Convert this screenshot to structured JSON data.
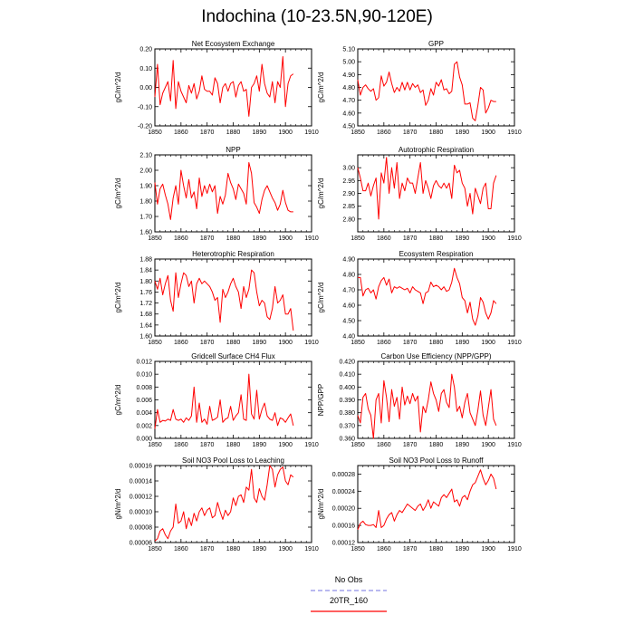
{
  "title": "Indochina (10-23.5N,90-120E)",
  "legend": {
    "entries": [
      {
        "label": "No Obs",
        "color": "#8f8fe6",
        "dash": true
      },
      {
        "label": "20TR_160",
        "color": "#ff0000",
        "dash": false
      }
    ]
  },
  "colors": {
    "series": "#ff0000",
    "axis": "#000000"
  },
  "chart_data": [
    {
      "type": "line",
      "title": "Net Ecosystem Exchange",
      "ylabel": "gC/m^2/d",
      "xlim": [
        1850,
        1910
      ],
      "ylim": [
        -0.2,
        0.2
      ],
      "xticks": [
        1850,
        1860,
        1870,
        1880,
        1890,
        1900,
        1910
      ],
      "yticks": [
        -0.2,
        -0.1,
        0.0,
        0.1,
        0.2
      ],
      "ytick_labels": [
        "-0.20",
        "-0.10",
        "0.00",
        "0.10",
        "0.20"
      ],
      "series": [
        {
          "name": "20TR_160",
          "x_start": 1850,
          "values": [
            -0.05,
            0.12,
            -0.09,
            -0.03,
            0.0,
            0.03,
            -0.07,
            0.14,
            -0.11,
            0.03,
            -0.02,
            -0.05,
            -0.08,
            0.01,
            -0.03,
            0.02,
            -0.06,
            -0.02,
            0.06,
            -0.01,
            -0.02,
            -0.02,
            -0.04,
            0.05,
            0.02,
            -0.08,
            0.0,
            0.02,
            -0.02,
            0.02,
            0.03,
            -0.05,
            0.01,
            0.03,
            -0.02,
            -0.01,
            -0.15,
            0.0,
            0.02,
            0.06,
            -0.02,
            0.12,
            0.02,
            -0.03,
            -0.05,
            0.03,
            -0.08,
            0.03,
            0.0,
            0.16,
            -0.1,
            0.02,
            0.06,
            0.07
          ]
        }
      ]
    },
    {
      "type": "line",
      "title": "GPP",
      "ylabel": "gC/m^2/d",
      "xlim": [
        1850,
        1910
      ],
      "ylim": [
        4.5,
        5.1
      ],
      "xticks": [
        1850,
        1860,
        1870,
        1880,
        1890,
        1900,
        1910
      ],
      "yticks": [
        4.5,
        4.6,
        4.7,
        4.8,
        4.9,
        5.0,
        5.1
      ],
      "ytick_labels": [
        "4.50",
        "4.60",
        "4.70",
        "4.80",
        "4.90",
        "5.00",
        "5.10"
      ],
      "series": [
        {
          "name": "20TR_160",
          "x_start": 1850,
          "values": [
            4.86,
            4.74,
            4.8,
            4.82,
            4.79,
            4.77,
            4.79,
            4.7,
            4.72,
            4.89,
            4.81,
            4.84,
            4.92,
            4.83,
            4.76,
            4.8,
            4.77,
            4.84,
            4.78,
            4.84,
            4.78,
            4.83,
            4.8,
            4.82,
            4.76,
            4.78,
            4.66,
            4.7,
            4.79,
            4.74,
            4.84,
            4.81,
            4.86,
            4.78,
            4.79,
            4.75,
            4.77,
            4.98,
            5.0,
            4.88,
            4.82,
            4.67,
            4.67,
            4.68,
            4.56,
            4.54,
            4.66,
            4.8,
            4.78,
            4.6,
            4.64,
            4.7,
            4.69,
            4.69
          ]
        }
      ]
    },
    {
      "type": "line",
      "title": "NPP",
      "ylabel": "gC/m^2/d",
      "xlim": [
        1850,
        1910
      ],
      "ylim": [
        1.6,
        2.1
      ],
      "xticks": [
        1850,
        1860,
        1870,
        1880,
        1890,
        1900,
        1910
      ],
      "yticks": [
        1.6,
        1.7,
        1.8,
        1.9,
        2.0,
        2.1
      ],
      "ytick_labels": [
        "1.60",
        "1.70",
        "1.80",
        "1.90",
        "2.00",
        "2.10"
      ],
      "series": [
        {
          "name": "20TR_160",
          "x_start": 1850,
          "values": [
            1.92,
            1.78,
            1.88,
            1.91,
            1.84,
            1.78,
            1.68,
            1.82,
            1.9,
            1.78,
            2.0,
            1.9,
            1.82,
            1.94,
            1.82,
            1.86,
            1.75,
            1.95,
            1.83,
            1.9,
            1.85,
            1.91,
            1.86,
            1.9,
            1.72,
            1.83,
            1.78,
            1.84,
            1.98,
            1.92,
            1.88,
            1.81,
            1.91,
            1.88,
            1.85,
            1.78,
            2.05,
            1.98,
            1.79,
            1.76,
            1.72,
            1.81,
            1.87,
            1.9,
            1.86,
            1.82,
            1.79,
            1.74,
            1.78,
            1.87,
            1.79,
            1.74,
            1.73,
            1.73
          ]
        }
      ]
    },
    {
      "type": "line",
      "title": "Autotrophic Respiration",
      "ylabel": "gC/m^2/d",
      "xlim": [
        1850,
        1910
      ],
      "ylim": [
        2.75,
        3.05
      ],
      "xticks": [
        1850,
        1860,
        1870,
        1880,
        1890,
        1900,
        1910
      ],
      "yticks": [
        2.8,
        2.85,
        2.9,
        2.95,
        3.0
      ],
      "ytick_labels": [
        "2.80",
        "2.85",
        "2.90",
        "2.95",
        "3.00"
      ],
      "series": [
        {
          "name": "20TR_160",
          "x_start": 1850,
          "values": [
            3.0,
            2.96,
            2.91,
            2.91,
            2.94,
            2.89,
            2.93,
            2.96,
            2.8,
            2.98,
            2.94,
            3.04,
            2.9,
            3.0,
            2.92,
            3.02,
            2.88,
            2.94,
            2.91,
            2.96,
            2.94,
            2.94,
            2.9,
            2.96,
            3.02,
            2.9,
            2.95,
            2.92,
            2.88,
            2.93,
            2.95,
            2.93,
            2.92,
            2.94,
            2.92,
            2.94,
            2.88,
            3.01,
            2.98,
            2.99,
            2.94,
            2.92,
            2.85,
            2.9,
            2.82,
            2.92,
            2.89,
            2.86,
            2.92,
            2.94,
            2.84,
            2.84,
            2.94,
            2.97
          ]
        }
      ]
    },
    {
      "type": "line",
      "title": "Heterotrophic Respiration",
      "ylabel": "gC/m^2/d",
      "xlim": [
        1850,
        1910
      ],
      "ylim": [
        1.6,
        1.88
      ],
      "xticks": [
        1850,
        1860,
        1870,
        1880,
        1890,
        1900,
        1910
      ],
      "yticks": [
        1.6,
        1.64,
        1.68,
        1.72,
        1.76,
        1.8,
        1.84,
        1.88
      ],
      "ytick_labels": [
        "1.60",
        "1.64",
        "1.68",
        "1.72",
        "1.76",
        "1.80",
        "1.84",
        "1.88"
      ],
      "series": [
        {
          "name": "20TR_160",
          "x_start": 1850,
          "values": [
            1.8,
            1.77,
            1.81,
            1.75,
            1.79,
            1.82,
            1.73,
            1.69,
            1.83,
            1.74,
            1.79,
            1.83,
            1.82,
            1.78,
            1.8,
            1.72,
            1.79,
            1.81,
            1.79,
            1.8,
            1.79,
            1.78,
            1.76,
            1.73,
            1.74,
            1.65,
            1.77,
            1.74,
            1.76,
            1.79,
            1.81,
            1.78,
            1.76,
            1.7,
            1.78,
            1.74,
            1.77,
            1.84,
            1.83,
            1.76,
            1.71,
            1.73,
            1.72,
            1.67,
            1.66,
            1.7,
            1.78,
            1.72,
            1.73,
            1.75,
            1.68,
            1.68,
            1.7,
            1.62
          ]
        }
      ]
    },
    {
      "type": "line",
      "title": "Ecosystem Respiration",
      "ylabel": "gC/m^2/d",
      "xlim": [
        1850,
        1910
      ],
      "ylim": [
        4.4,
        4.9
      ],
      "xticks": [
        1850,
        1860,
        1870,
        1880,
        1890,
        1900,
        1910
      ],
      "yticks": [
        4.4,
        4.5,
        4.6,
        4.7,
        4.8,
        4.9
      ],
      "ytick_labels": [
        "4.40",
        "4.50",
        "4.60",
        "4.70",
        "4.80",
        "4.90"
      ],
      "series": [
        {
          "name": "20TR_160",
          "x_start": 1850,
          "values": [
            4.78,
            4.78,
            4.66,
            4.7,
            4.71,
            4.68,
            4.7,
            4.64,
            4.72,
            4.76,
            4.78,
            4.73,
            4.77,
            4.68,
            4.72,
            4.71,
            4.72,
            4.71,
            4.7,
            4.71,
            4.68,
            4.72,
            4.7,
            4.69,
            4.68,
            4.61,
            4.68,
            4.69,
            4.75,
            4.72,
            4.73,
            4.72,
            4.7,
            4.72,
            4.69,
            4.7,
            4.75,
            4.84,
            4.78,
            4.74,
            4.65,
            4.63,
            4.55,
            4.62,
            4.51,
            4.47,
            4.53,
            4.65,
            4.62,
            4.55,
            4.51,
            4.55,
            4.63,
            4.61
          ]
        }
      ]
    },
    {
      "type": "line",
      "title": "Gridcell Surface CH4 Flux",
      "ylabel": "gC/m^2/d",
      "xlim": [
        1850,
        1910
      ],
      "ylim": [
        0.0,
        0.012
      ],
      "xticks": [
        1850,
        1860,
        1870,
        1880,
        1890,
        1900,
        1910
      ],
      "yticks": [
        0.0,
        0.002,
        0.004,
        0.006,
        0.008,
        0.01,
        0.012
      ],
      "ytick_labels": [
        "0.000",
        "0.002",
        "0.004",
        "0.006",
        "0.008",
        "0.010",
        "0.012"
      ],
      "series": [
        {
          "name": "20TR_160",
          "x_start": 1850,
          "values": [
            0.0015,
            0.0045,
            0.0025,
            0.0028,
            0.0027,
            0.003,
            0.0028,
            0.0045,
            0.003,
            0.0028,
            0.003,
            0.0025,
            0.0032,
            0.0028,
            0.0035,
            0.008,
            0.0025,
            0.0055,
            0.0025,
            0.003,
            0.0022,
            0.005,
            0.0028,
            0.003,
            0.0033,
            0.006,
            0.0025,
            0.003,
            0.0032,
            0.005,
            0.0028,
            0.0035,
            0.004,
            0.0068,
            0.003,
            0.0028,
            0.01,
            0.0038,
            0.003,
            0.0075,
            0.003,
            0.0045,
            0.0055,
            0.0035,
            0.003,
            0.0028,
            0.004,
            0.002,
            0.0032,
            0.003,
            0.0025,
            0.0032,
            0.0038,
            0.002
          ]
        }
      ]
    },
    {
      "type": "line",
      "title": "Carbon Use Efficiency (NPP/GPP)",
      "ylabel": "NPP/GPP",
      "xlim": [
        1850,
        1910
      ],
      "ylim": [
        0.36,
        0.42
      ],
      "xticks": [
        1850,
        1860,
        1870,
        1880,
        1890,
        1900,
        1910
      ],
      "yticks": [
        0.36,
        0.37,
        0.38,
        0.39,
        0.4,
        0.41,
        0.42
      ],
      "ytick_labels": [
        "0.360",
        "0.370",
        "0.380",
        "0.390",
        "0.400",
        "0.410",
        "0.420"
      ],
      "series": [
        {
          "name": "20TR_160",
          "x_start": 1850,
          "values": [
            0.378,
            0.372,
            0.392,
            0.395,
            0.383,
            0.378,
            0.36,
            0.39,
            0.395,
            0.372,
            0.405,
            0.392,
            0.373,
            0.398,
            0.385,
            0.392,
            0.375,
            0.4,
            0.386,
            0.393,
            0.387,
            0.395,
            0.389,
            0.393,
            0.365,
            0.385,
            0.38,
            0.39,
            0.404,
            0.395,
            0.39,
            0.381,
            0.395,
            0.398,
            0.388,
            0.384,
            0.41,
            0.4,
            0.381,
            0.385,
            0.376,
            0.388,
            0.395,
            0.38,
            0.375,
            0.37,
            0.382,
            0.397,
            0.378,
            0.37,
            0.384,
            0.398,
            0.375,
            0.37
          ]
        }
      ]
    },
    {
      "type": "line",
      "title": "Soil NO3 Pool Loss to Leaching",
      "ylabel": "gN/m^2/d",
      "xlim": [
        1850,
        1910
      ],
      "ylim": [
        6e-05,
        0.00016
      ],
      "xticks": [
        1850,
        1860,
        1870,
        1880,
        1890,
        1900,
        1910
      ],
      "yticks": [
        6e-05,
        8e-05,
        0.0001,
        0.00012,
        0.00014,
        0.00016
      ],
      "ytick_labels": [
        "0.00006",
        "0.00008",
        "0.00010",
        "0.00012",
        "0.00014",
        "0.00016"
      ],
      "series": [
        {
          "name": "20TR_160",
          "x_start": 1850,
          "values": [
            6.2e-05,
            6.5e-05,
            7.5e-05,
            7.8e-05,
            7e-05,
            6.5e-05,
            7.5e-05,
            8e-05,
            0.00011,
            8.5e-05,
            8.8e-05,
            0.0001,
            7.8e-05,
            9.2e-05,
            8.2e-05,
            9.8e-05,
            8.8e-05,
            0.0001,
            0.000105,
            9.5e-05,
            0.000102,
            0.000105,
            9.2e-05,
            9.5e-05,
            0.000112,
            0.0001,
            9e-05,
            0.000102,
            9.5e-05,
            0.0001,
            0.000118,
            0.000108,
            0.00012,
            0.000122,
            0.000112,
            0.000132,
            0.000128,
            0.000155,
            0.000118,
            0.000112,
            0.00013,
            0.00012,
            0.000115,
            0.000135,
            0.00016,
            0.000155,
            0.000132,
            0.000148,
            0.000155,
            0.000158,
            0.00014,
            0.000135,
            0.000148,
            0.000145
          ]
        }
      ]
    },
    {
      "type": "line",
      "title": "Soil NO3 Pool Loss to Runoff",
      "ylabel": "gN/m^2/d",
      "xlim": [
        1850,
        1910
      ],
      "ylim": [
        0.00012,
        0.0003
      ],
      "xticks": [
        1850,
        1860,
        1870,
        1880,
        1890,
        1900,
        1910
      ],
      "yticks": [
        0.00012,
        0.00016,
        0.0002,
        0.00024,
        0.00028
      ],
      "ytick_labels": [
        "0.00012",
        "0.00016",
        "0.00020",
        "0.00024",
        "0.00028"
      ],
      "series": [
        {
          "name": "20TR_160",
          "x_start": 1850,
          "values": [
            0.00015,
            0.000165,
            0.00017,
            0.000162,
            0.00016,
            0.00016,
            0.000162,
            0.000155,
            0.000195,
            0.000155,
            0.00016,
            0.000175,
            0.000185,
            0.00019,
            0.00017,
            0.000185,
            0.000195,
            0.00019,
            0.0002,
            0.00021,
            0.000205,
            0.0002,
            0.000195,
            0.000205,
            0.00021,
            0.000195,
            0.000205,
            0.00022,
            0.0002,
            0.000215,
            0.00021,
            0.000205,
            0.000225,
            0.000232,
            0.000225,
            0.000235,
            0.000245,
            0.000215,
            0.00022,
            0.000205,
            0.000225,
            0.00023,
            0.00022,
            0.00024,
            0.000255,
            0.00026,
            0.000275,
            0.00029,
            0.00027,
            0.000255,
            0.000265,
            0.00028,
            0.00027,
            0.000245
          ]
        }
      ]
    }
  ]
}
